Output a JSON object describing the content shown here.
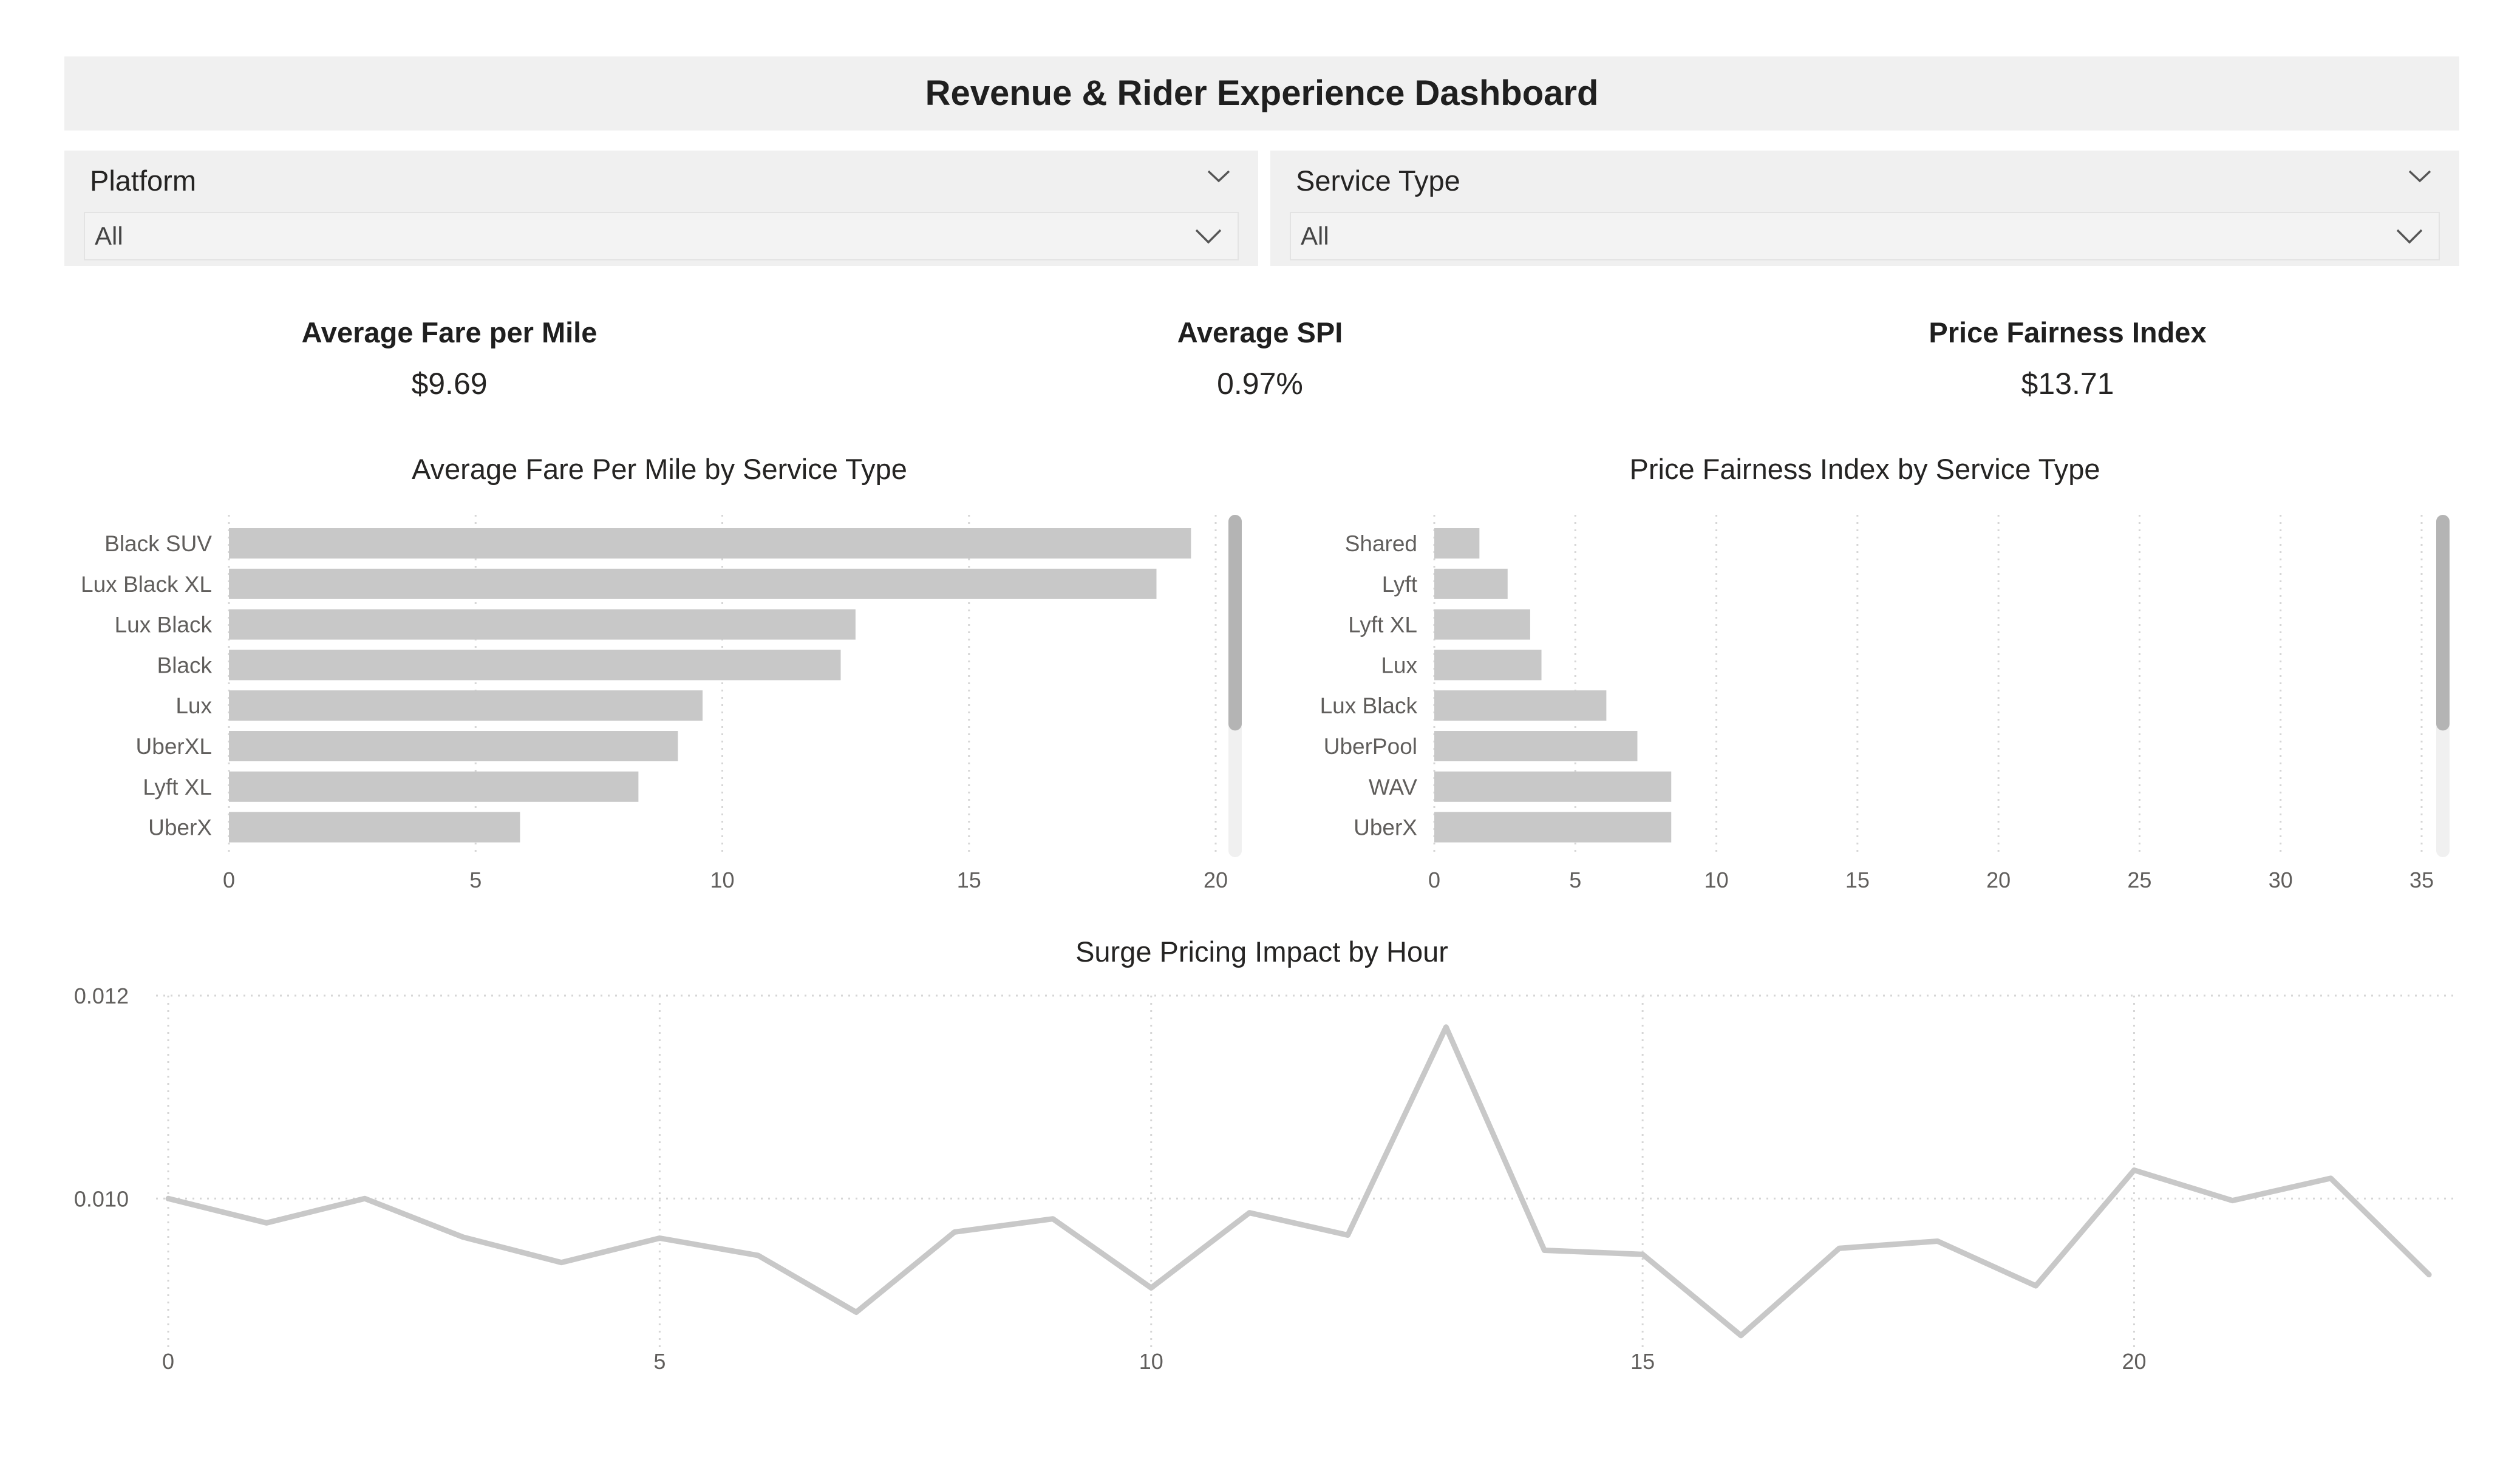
{
  "banner": {
    "title": "Revenue & Rider Experience Dashboard"
  },
  "slicers": [
    {
      "label": "Platform",
      "value": "All"
    },
    {
      "label": "Service Type",
      "value": "All"
    }
  ],
  "kpis": [
    {
      "title": "Average Fare per Mile",
      "value": "$9.69"
    },
    {
      "title": "Average SPI",
      "value": "0.97%"
    },
    {
      "title": "Price Fairness Index",
      "value": "$13.71"
    }
  ],
  "colors": {
    "bar": "#c8c8c8",
    "line": "#c8c8c8",
    "banner": "#f0f0f0",
    "grid": "#d6d6d6",
    "scrollbar": "#b4b4b4"
  },
  "chart_data": [
    {
      "type": "bar",
      "orientation": "horizontal",
      "title": "Average Fare Per Mile by Service Type",
      "categories": [
        "Black SUV",
        "Lux Black XL",
        "Lux Black",
        "Black",
        "Lux",
        "UberXL",
        "Lyft XL",
        "UberX"
      ],
      "values": [
        19.5,
        18.8,
        12.7,
        12.4,
        9.6,
        9.1,
        8.3,
        5.9
      ],
      "xlim": [
        0,
        20
      ],
      "xticks": [
        "0",
        "5",
        "10",
        "15",
        "20"
      ],
      "grid": true
    },
    {
      "type": "bar",
      "orientation": "horizontal",
      "title": "Price Fairness Index by Service Type",
      "categories": [
        "Shared",
        "Lyft",
        "Lyft XL",
        "Lux",
        "Lux Black",
        "UberPool",
        "WAV",
        "UberX"
      ],
      "values": [
        1.6,
        2.6,
        3.4,
        3.8,
        6.1,
        7.2,
        8.4,
        8.4
      ],
      "xlim": [
        0,
        35
      ],
      "xticks": [
        "0",
        "5",
        "10",
        "15",
        "20",
        "25",
        "30",
        "35"
      ],
      "grid": true
    },
    {
      "type": "line",
      "title": "Surge Pricing Impact by Hour",
      "x": [
        0,
        1,
        2,
        3,
        4,
        5,
        6,
        7,
        8,
        9,
        10,
        11,
        12,
        13,
        14,
        15,
        16,
        17,
        18,
        19,
        20,
        21,
        22,
        23
      ],
      "y": [
        0.01,
        0.00976,
        0.01,
        0.00962,
        0.00937,
        0.00961,
        0.00944,
        0.00888,
        0.00967,
        0.0098,
        0.00912,
        0.00986,
        0.00964,
        0.01169,
        0.00949,
        0.00945,
        0.00865,
        0.00951,
        0.00958,
        0.00914,
        0.01028,
        0.00998,
        0.0102,
        0.00925
      ],
      "xlim": [
        0,
        24
      ],
      "ylim": [
        0.0085,
        0.012
      ],
      "xticks": [
        "0",
        "5",
        "10",
        "15",
        "20"
      ],
      "yticks": [
        "0.012",
        "0.010"
      ],
      "grid": true
    }
  ]
}
